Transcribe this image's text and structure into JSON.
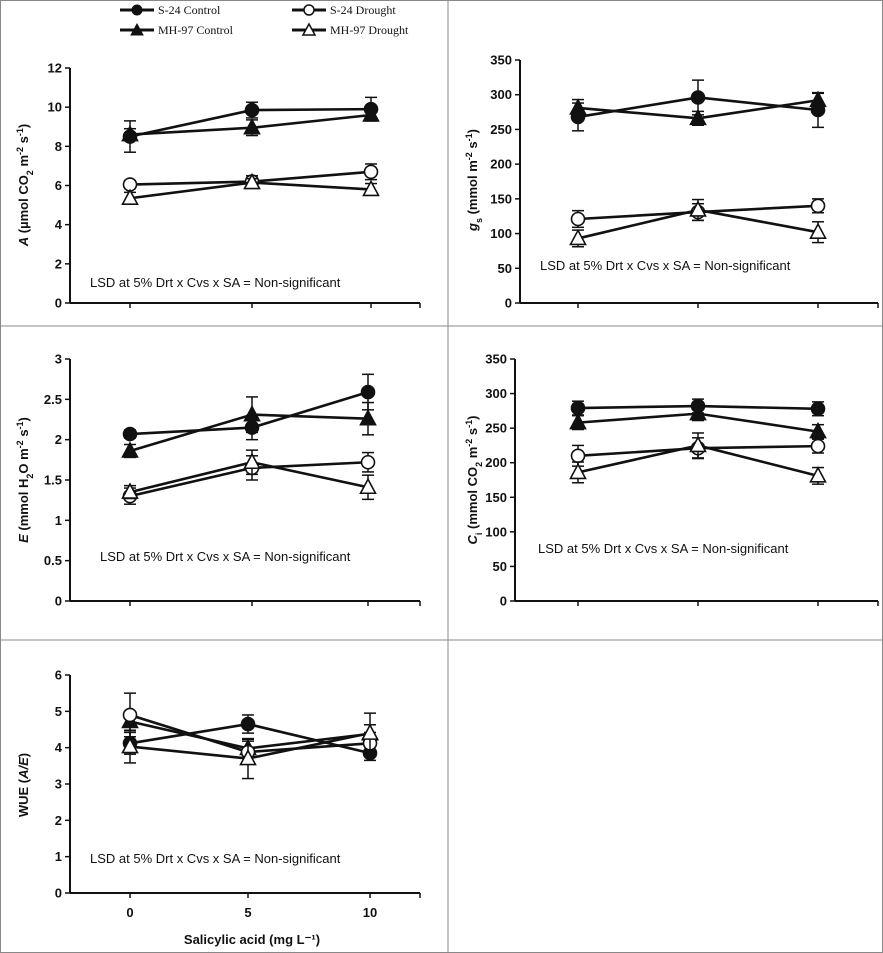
{
  "legend": {
    "entries": [
      {
        "label": "S-24 Control",
        "marker": "filled-circle"
      },
      {
        "label": "S-24 Drought",
        "marker": "open-circle"
      },
      {
        "label": "MH-97 Control",
        "marker": "filled-triangle"
      },
      {
        "label": "MH-97 Drought",
        "marker": "open-triangle"
      }
    ]
  },
  "x_axis": {
    "label": "Salicylic acid (mg L⁻¹)",
    "tick_labels": [
      "0",
      "5",
      "10"
    ]
  },
  "colors": {
    "line": "#111111",
    "marker_fill_open": "#ffffff",
    "marker_fill_solid": "#111111",
    "panel_border": "#888888"
  },
  "chart_data": [
    {
      "type": "line",
      "panel": "top-left",
      "ylabel_parts": [
        {
          "t": "A",
          "i": true
        },
        {
          "t": " (µmol CO"
        },
        {
          "t": "2",
          "sub": true
        },
        {
          "t": " m"
        },
        {
          "t": "-2",
          "sup": true
        },
        {
          "t": " s"
        },
        {
          "t": "-1",
          "sup": true
        },
        {
          "t": ")"
        }
      ],
      "ylim": [
        0,
        12
      ],
      "yticks": [
        0,
        2,
        4,
        6,
        8,
        10,
        12
      ],
      "ytick_labels": [
        "0",
        "2",
        "4",
        "6",
        "8",
        "10",
        "12"
      ],
      "x": [
        0,
        5,
        10
      ],
      "annotation": "LSD at 5% Drt x Cvs x SA =  Non-significant",
      "show_x_tick_labels": false,
      "series": [
        {
          "name": "S-24 Control",
          "marker": "filled-circle",
          "values": [
            8.5,
            9.85,
            9.9
          ],
          "errors": [
            0.8,
            0.4,
            0.6
          ]
        },
        {
          "name": "MH-97 Control",
          "marker": "filled-triangle",
          "values": [
            8.6,
            8.95,
            9.6
          ],
          "errors": [
            0.3,
            0.4,
            0.3
          ]
        },
        {
          "name": "S-24 Drought",
          "marker": "open-circle",
          "values": [
            6.05,
            6.2,
            6.7
          ],
          "errors": [
            0.2,
            0.3,
            0.4
          ]
        },
        {
          "name": "MH-97 Drought",
          "marker": "open-triangle",
          "values": [
            5.35,
            6.15,
            5.8
          ],
          "errors": [
            0.3,
            0.2,
            0.3
          ]
        }
      ]
    },
    {
      "type": "line",
      "panel": "top-right",
      "ylabel_parts": [
        {
          "t": "g",
          "i": true
        },
        {
          "t": "s",
          "sub": true
        },
        {
          "t": " (mmol m"
        },
        {
          "t": "-2",
          "sup": true
        },
        {
          "t": " s"
        },
        {
          "t": "-1",
          "sup": true
        },
        {
          "t": ")"
        }
      ],
      "ylim": [
        0,
        350
      ],
      "yticks": [
        0,
        50,
        100,
        150,
        200,
        250,
        300,
        350
      ],
      "ytick_labels": [
        "0",
        "50",
        "100",
        "150",
        "200",
        "250",
        "300",
        "350"
      ],
      "x": [
        0,
        5,
        10
      ],
      "annotation": "LSD at 5% Drt x Cvs x SA =  Non-significant",
      "show_x_tick_labels": false,
      "series": [
        {
          "name": "S-24 Control",
          "marker": "filled-circle",
          "values": [
            268,
            296,
            278
          ],
          "errors": [
            20,
            25,
            25
          ]
        },
        {
          "name": "MH-97 Control",
          "marker": "filled-triangle",
          "values": [
            281,
            266,
            292
          ],
          "errors": [
            12,
            10,
            10
          ]
        },
        {
          "name": "S-24 Drought",
          "marker": "open-circle",
          "values": [
            121,
            131,
            140
          ],
          "errors": [
            12,
            12,
            10
          ]
        },
        {
          "name": "MH-97 Drought",
          "marker": "open-triangle",
          "values": [
            93,
            134,
            102
          ],
          "errors": [
            12,
            15,
            15
          ]
        }
      ]
    },
    {
      "type": "line",
      "panel": "middle-left",
      "ylabel_parts": [
        {
          "t": "E",
          "i": true
        },
        {
          "t": " (mmol H"
        },
        {
          "t": "2",
          "sub": true
        },
        {
          "t": "O m"
        },
        {
          "t": "-2",
          "sup": true
        },
        {
          "t": " s"
        },
        {
          "t": "-1",
          "sup": true
        },
        {
          "t": ")"
        }
      ],
      "ylim": [
        0,
        3
      ],
      "yticks": [
        0,
        0.5,
        1,
        1.5,
        2,
        2.5,
        3
      ],
      "ytick_labels": [
        "0",
        "0.5",
        "1",
        "1.5",
        "2",
        "2.5",
        "3"
      ],
      "x": [
        0,
        5,
        10
      ],
      "annotation": "LSD at 5% Drt x Cvs x SA =  Non-significant",
      "show_x_tick_labels": false,
      "series": [
        {
          "name": "S-24 Control",
          "marker": "filled-circle",
          "values": [
            2.07,
            2.15,
            2.59
          ],
          "errors": [
            0.05,
            0.15,
            0.22
          ]
        },
        {
          "name": "MH-97 Control",
          "marker": "filled-triangle",
          "values": [
            1.86,
            2.31,
            2.26
          ],
          "errors": [
            0.08,
            0.22,
            0.2
          ]
        },
        {
          "name": "S-24 Drought",
          "marker": "open-circle",
          "values": [
            1.3,
            1.65,
            1.72
          ],
          "errors": [
            0.1,
            0.15,
            0.12
          ]
        },
        {
          "name": "MH-97 Drought",
          "marker": "open-triangle",
          "values": [
            1.35,
            1.72,
            1.41
          ],
          "errors": [
            0.08,
            0.15,
            0.15
          ]
        }
      ]
    },
    {
      "type": "line",
      "panel": "middle-right",
      "ylabel_parts": [
        {
          "t": "C",
          "i": true
        },
        {
          "t": "i",
          "sub": true
        },
        {
          "t": " (mmol CO"
        },
        {
          "t": "2",
          "sub": true
        },
        {
          "t": " m"
        },
        {
          "t": "-2",
          "sup": true
        },
        {
          "t": " s"
        },
        {
          "t": "-1",
          "sup": true
        },
        {
          "t": ")"
        }
      ],
      "ylim": [
        0,
        350
      ],
      "yticks": [
        0,
        50,
        100,
        150,
        200,
        250,
        300,
        350
      ],
      "ytick_labels": [
        "0",
        "50",
        "100",
        "150",
        "200",
        "250",
        "300",
        "350"
      ],
      "x": [
        0,
        5,
        10
      ],
      "annotation": "LSD at 5% Drt x Cvs x SA =  Non-significant",
      "show_x_tick_labels": false,
      "series": [
        {
          "name": "S-24 Control",
          "marker": "filled-circle",
          "values": [
            279,
            282,
            278
          ],
          "errors": [
            10,
            10,
            10
          ]
        },
        {
          "name": "MH-97 Control",
          "marker": "filled-triangle",
          "values": [
            258,
            271,
            245
          ],
          "errors": [
            10,
            10,
            10
          ]
        },
        {
          "name": "S-24 Drought",
          "marker": "open-circle",
          "values": [
            210,
            221,
            224
          ],
          "errors": [
            15,
            15,
            10
          ]
        },
        {
          "name": "MH-97 Drought",
          "marker": "open-triangle",
          "values": [
            186,
            225,
            181
          ],
          "errors": [
            15,
            18,
            12
          ]
        }
      ]
    },
    {
      "type": "line",
      "panel": "bottom-left",
      "ylabel_parts": [
        {
          "t": "WUE ("
        },
        {
          "t": "A/E",
          "i": true
        },
        {
          "t": ")"
        }
      ],
      "ylim": [
        0,
        6
      ],
      "yticks": [
        0,
        1,
        2,
        3,
        4,
        5,
        6
      ],
      "ytick_labels": [
        "0",
        "1",
        "2",
        "3",
        "4",
        "5",
        "6"
      ],
      "x": [
        0,
        5,
        10
      ],
      "annotation": "LSD at 5% Drt x Cvs x SA =  Non-significant",
      "show_x_tick_labels": true,
      "series": [
        {
          "name": "S-24 Control",
          "marker": "filled-circle",
          "values": [
            4.12,
            4.65,
            3.85
          ],
          "errors": [
            0.3,
            0.25,
            0.2
          ]
        },
        {
          "name": "MH-97 Control",
          "marker": "filled-triangle",
          "values": [
            4.72,
            3.98,
            4.38
          ],
          "errors": [
            0.25,
            0.25,
            0.25
          ]
        },
        {
          "name": "S-24 Drought",
          "marker": "open-circle",
          "values": [
            4.9,
            3.88,
            4.12
          ],
          "errors": [
            0.6,
            0.3,
            0.3
          ]
        },
        {
          "name": "MH-97 Drought",
          "marker": "open-triangle",
          "values": [
            4.03,
            3.7,
            4.4
          ],
          "errors": [
            0.45,
            0.55,
            0.55
          ]
        }
      ]
    }
  ]
}
